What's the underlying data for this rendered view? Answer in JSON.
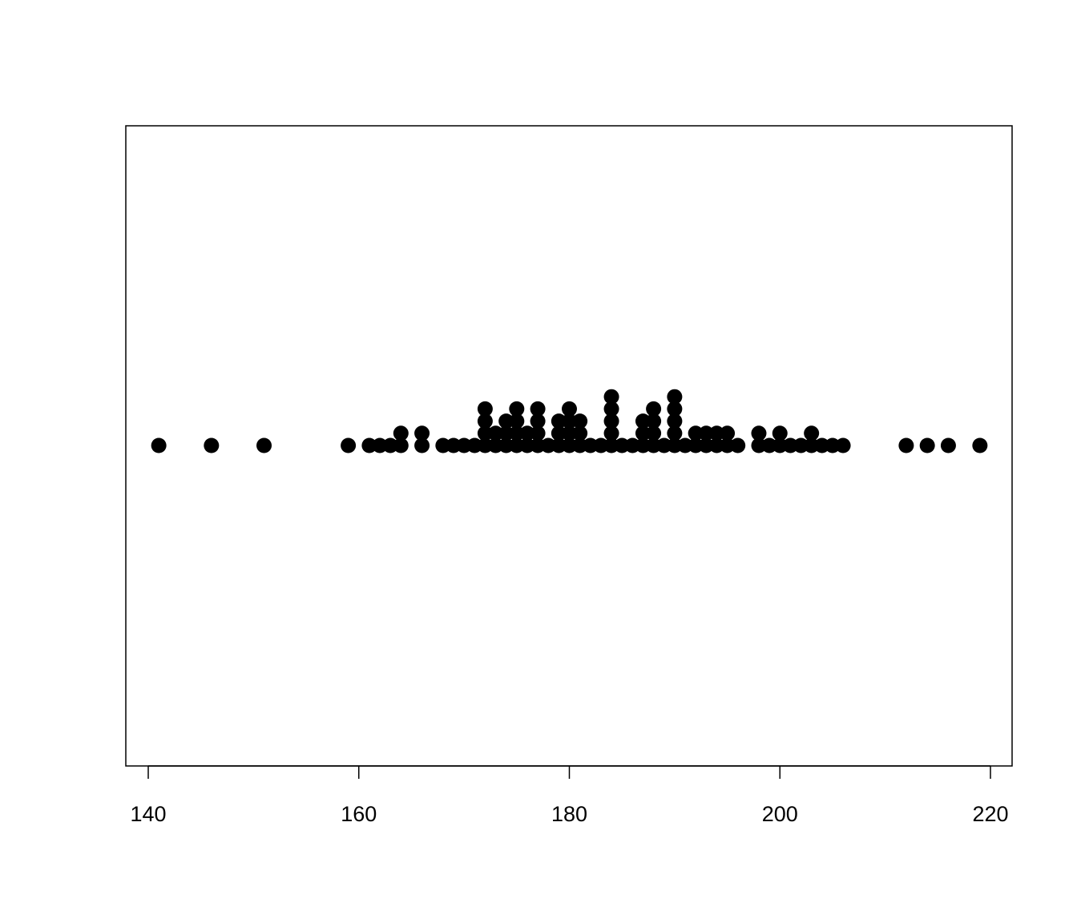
{
  "chart_data": {
    "type": "scatter",
    "subtype": "stacked stripchart",
    "title": "",
    "xlabel": "",
    "ylabel": "",
    "xlim": [
      138.7,
      222.2
    ],
    "x_ticks": [
      140,
      160,
      180,
      200,
      220
    ],
    "tick_labels": [
      "140",
      "160",
      "180",
      "200",
      "220"
    ],
    "grid": false,
    "point_color": "#000000",
    "points": [
      {
        "x": 141,
        "count": 1
      },
      {
        "x": 146,
        "count": 1
      },
      {
        "x": 151,
        "count": 1
      },
      {
        "x": 159,
        "count": 1
      },
      {
        "x": 161,
        "count": 1
      },
      {
        "x": 162,
        "count": 1
      },
      {
        "x": 163,
        "count": 1
      },
      {
        "x": 164,
        "count": 2
      },
      {
        "x": 166,
        "count": 2
      },
      {
        "x": 168,
        "count": 1
      },
      {
        "x": 169,
        "count": 1
      },
      {
        "x": 170,
        "count": 1
      },
      {
        "x": 171,
        "count": 1
      },
      {
        "x": 172,
        "count": 4
      },
      {
        "x": 173,
        "count": 2
      },
      {
        "x": 174,
        "count": 3
      },
      {
        "x": 175,
        "count": 4
      },
      {
        "x": 176,
        "count": 2
      },
      {
        "x": 177,
        "count": 4
      },
      {
        "x": 178,
        "count": 1
      },
      {
        "x": 179,
        "count": 3
      },
      {
        "x": 180,
        "count": 4
      },
      {
        "x": 181,
        "count": 3
      },
      {
        "x": 182,
        "count": 1
      },
      {
        "x": 183,
        "count": 1
      },
      {
        "x": 184,
        "count": 5
      },
      {
        "x": 185,
        "count": 1
      },
      {
        "x": 186,
        "count": 1
      },
      {
        "x": 187,
        "count": 3
      },
      {
        "x": 188,
        "count": 4
      },
      {
        "x": 189,
        "count": 1
      },
      {
        "x": 190,
        "count": 5
      },
      {
        "x": 191,
        "count": 1
      },
      {
        "x": 192,
        "count": 2
      },
      {
        "x": 193,
        "count": 2
      },
      {
        "x": 194,
        "count": 2
      },
      {
        "x": 195,
        "count": 2
      },
      {
        "x": 196,
        "count": 1
      },
      {
        "x": 198,
        "count": 2
      },
      {
        "x": 199,
        "count": 1
      },
      {
        "x": 200,
        "count": 2
      },
      {
        "x": 201,
        "count": 1
      },
      {
        "x": 202,
        "count": 1
      },
      {
        "x": 203,
        "count": 2
      },
      {
        "x": 204,
        "count": 1
      },
      {
        "x": 205,
        "count": 1
      },
      {
        "x": 206,
        "count": 1
      },
      {
        "x": 212,
        "count": 1
      },
      {
        "x": 214,
        "count": 1
      },
      {
        "x": 216,
        "count": 1
      },
      {
        "x": 219,
        "count": 1
      }
    ]
  }
}
